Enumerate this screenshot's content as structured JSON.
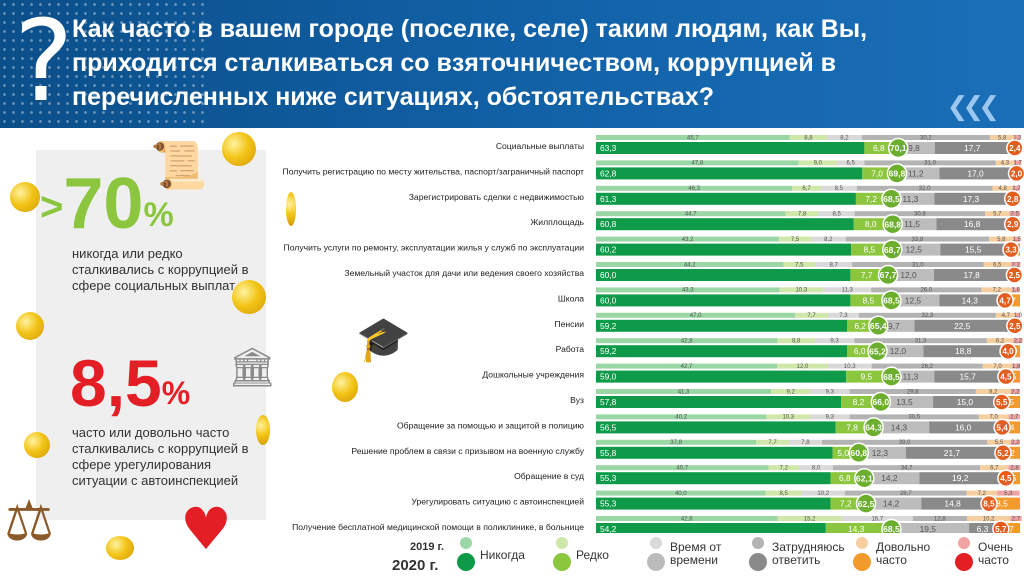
{
  "header": {
    "title": "Как часто в вашем городе (поселке, селе) таким людям, как Вы, приходится сталкиваться со взяточничеством, коррупцией в перечисленных ниже ситуациях, обстоятельствах?",
    "icon": "question-mark-icon"
  },
  "side": {
    "stat1": {
      "gt": ">",
      "value": "70",
      "pct": "%",
      "text": "никогда или редко сталкивались с коррупцией в сфере социальных выплат"
    },
    "stat2": {
      "value": "8,5",
      "pct": "%",
      "text": "часто или довольно часто сталкивались с коррупцией в сфере урегулирования ситуации с автоинспекцией"
    }
  },
  "legend": {
    "year2019": "2019 г.",
    "year2020": "2020 г.",
    "items": [
      {
        "label": "Никогда",
        "c2019": "#9ad7a5",
        "c2020": "#0e9a48"
      },
      {
        "label": "Редко",
        "c2019": "#cfe7a8",
        "c2020": "#8cc63f"
      },
      {
        "label": "Время от времени",
        "c2019": "#d9d9d9",
        "c2020": "#bcbcbc"
      },
      {
        "label": "Затрудняюсь ответить",
        "c2019": "#b3b3b3",
        "c2020": "#8a8a8a"
      },
      {
        "label": "Довольно часто",
        "c2019": "#f6cfa0",
        "c2020": "#f39a2d"
      },
      {
        "label": "Очень часто",
        "c2019": "#f1a3a3",
        "c2020": "#e31e24"
      }
    ]
  },
  "chart_data": {
    "type": "bar",
    "stacked": true,
    "orientation": "horizontal",
    "segments": [
      "Никогда",
      "Редко",
      "Время от времени",
      "Затрудняюсь ответить",
      "Довольно часто",
      "Очень часто"
    ],
    "rows": [
      {
        "label": "Социальные выплаты",
        "v2019": [
          45.7,
          8.8,
          8.2,
          30.2,
          5.8,
          1.3
        ],
        "v2020": [
          63.3,
          6.8,
          9.8,
          17.7,
          2.4,
          0
        ],
        "sum2020": "70,1"
      },
      {
        "label": "Получить регистрацию по месту жительства, паспорт/заграничный паспорт",
        "v2019": [
          47.8,
          9.0,
          6.5,
          31.0,
          4.3,
          1.7
        ],
        "v2020": [
          62.8,
          7.0,
          11.2,
          17.0,
          2.0,
          0
        ],
        "sum2020": "69,8"
      },
      {
        "label": "Зарегистрировать сделки с недвижимостью",
        "v2019": [
          46.3,
          6.7,
          8.5,
          32.0,
          4.8,
          1.7
        ],
        "v2020": [
          61.3,
          7.2,
          11.3,
          17.3,
          2.8,
          0
        ],
        "sum2020": "68,5"
      },
      {
        "label": "Жилплощадь",
        "v2019": [
          44.7,
          7.8,
          8.5,
          30.8,
          5.7,
          2.5
        ],
        "v2020": [
          60.8,
          8.0,
          11.5,
          16.8,
          2.9,
          0
        ],
        "sum2020": "68,8"
      },
      {
        "label": "Получить услуги по ремонту, эксплуатации жилья у служб по эксплуатации",
        "v2019": [
          43.2,
          7.5,
          8.2,
          33.8,
          5.8,
          1.5
        ],
        "v2020": [
          60.2,
          8.5,
          12.5,
          15.5,
          3.3,
          0
        ],
        "sum2020": "68,7"
      },
      {
        "label": "Земельный участок для дачи или ведения своего хозяйства",
        "v2019": [
          44.2,
          7.5,
          8.7,
          31.0,
          6.5,
          2.2
        ],
        "v2020": [
          60.0,
          7.7,
          12.0,
          17.8,
          2.5,
          0
        ],
        "sum2020": "67,7"
      },
      {
        "label": "Школа",
        "v2019": [
          43.3,
          10.3,
          11.3,
          26.0,
          7.2,
          1.8
        ],
        "v2020": [
          60.0,
          8.5,
          12.5,
          14.3,
          4.7,
          0
        ],
        "sum2020": "68,5"
      },
      {
        "label": "Пенсии",
        "v2019": [
          47.0,
          7.7,
          7.3,
          32.3,
          4.7,
          1.0
        ],
        "v2020": [
          59.2,
          6.2,
          9.7,
          22.5,
          2.5,
          0
        ],
        "sum2020": "65,4"
      },
      {
        "label": "Работа",
        "v2019": [
          42.8,
          8.8,
          9.3,
          31.3,
          6.2,
          2.2
        ],
        "v2020": [
          59.2,
          6.0,
          12.0,
          18.8,
          4.0,
          0
        ],
        "sum2020": "65,2"
      },
      {
        "label": "Дошкольные учреждения",
        "v2019": [
          42.7,
          12.0,
          10.3,
          26.2,
          7.0,
          1.8
        ],
        "v2020": [
          59.0,
          9.5,
          11.3,
          15.7,
          4.5,
          0
        ],
        "sum2020": "68,5"
      },
      {
        "label": "Вуз",
        "v2019": [
          41.3,
          9.2,
          9.3,
          29.8,
          8.2,
          2.2
        ],
        "v2020": [
          57.8,
          8.2,
          13.5,
          15.0,
          5.5,
          0
        ],
        "sum2020": "66,0"
      },
      {
        "label": "Обращение за помощью и защитой в полицию",
        "v2019": [
          40.2,
          10.3,
          9.3,
          30.5,
          7.0,
          2.7
        ],
        "v2020": [
          56.5,
          7.8,
          14.3,
          16.0,
          5.4,
          0
        ],
        "sum2020": "64,3"
      },
      {
        "label": "Решение проблем в связи с призывом на военную службу",
        "v2019": [
          37.8,
          7.7,
          7.8,
          39.0,
          5.5,
          2.2
        ],
        "v2020": [
          55.8,
          5.0,
          12.3,
          21.7,
          5.2,
          0
        ],
        "sum2020": "60,8"
      },
      {
        "label": "Обращение в суд",
        "v2019": [
          40.7,
          7.2,
          8.0,
          34.7,
          6.7,
          2.8
        ],
        "v2020": [
          55.3,
          6.8,
          14.2,
          19.2,
          4.5,
          0
        ],
        "sum2020": "62,1"
      },
      {
        "label": "Урегулировать ситуацию с автоинспекцией",
        "v2019": [
          40.0,
          8.5,
          10.2,
          28.7,
          7.2,
          5.3
        ],
        "v2020": [
          55.3,
          7.2,
          14.2,
          14.8,
          8.5,
          0
        ],
        "sum2020": "62,5"
      },
      {
        "label": "Получение бесплатной медицинской помощи в поликлинике, в больнице",
        "v2019": [
          42.8,
          15.2,
          16.7,
          12.8,
          10.2,
          2.7
        ],
        "v2020": [
          54.2,
          14.3,
          19.5,
          6.3,
          5.7,
          0
        ],
        "sum2020": "68,5"
      }
    ]
  }
}
